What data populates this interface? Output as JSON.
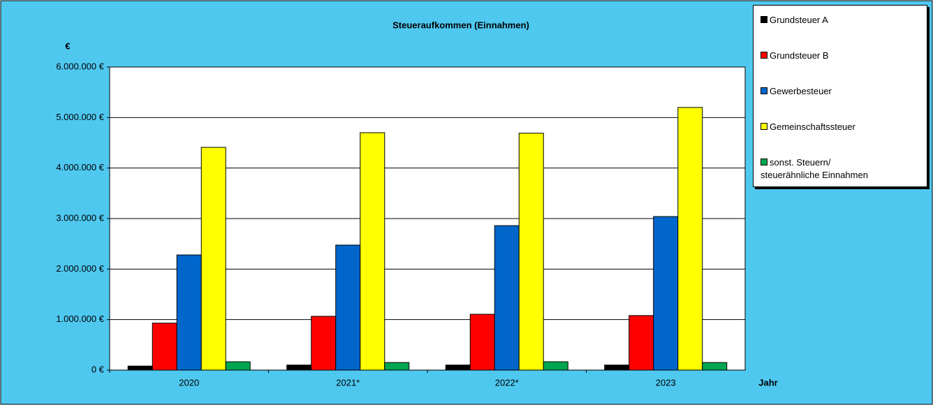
{
  "chart_data": {
    "type": "bar",
    "title": "Steueraufkommen (Einnahmen)",
    "y_label": "€",
    "x_label": "Jahr",
    "categories": [
      "2020",
      "2021*",
      "2022*",
      "2023"
    ],
    "series": [
      {
        "name": "Grundsteuer A",
        "color": "#000000",
        "values": [
          80000,
          100000,
          100000,
          100000
        ]
      },
      {
        "name": "Grundsteuer B",
        "color": "#ff0000",
        "values": [
          930000,
          1065000,
          1105000,
          1080000
        ]
      },
      {
        "name": "Gewerbesteuer",
        "color": "#0066cc",
        "values": [
          2280000,
          2475000,
          2860000,
          3040000
        ]
      },
      {
        "name": "Gemeinschaftssteuer",
        "color": "#ffff00",
        "values": [
          4410000,
          4700000,
          4690000,
          5200000
        ]
      },
      {
        "name": "sonst. Steuern/\nsteuerähnliche Einnahmen",
        "color": "#00a651",
        "values": [
          165000,
          150000,
          165000,
          150000
        ]
      }
    ],
    "ylim": [
      0,
      6000000
    ],
    "yticks": [
      {
        "value": 0,
        "label": "0 €"
      },
      {
        "value": 1000000,
        "label": "1.000.000 €"
      },
      {
        "value": 2000000,
        "label": "2.000.000 €"
      },
      {
        "value": 3000000,
        "label": "3.000.000 €"
      },
      {
        "value": 4000000,
        "label": "4.000.000 €"
      },
      {
        "value": 5000000,
        "label": "5.000.000 €"
      },
      {
        "value": 6000000,
        "label": "6.000.000 €"
      }
    ],
    "grid": true,
    "legend": "right"
  }
}
